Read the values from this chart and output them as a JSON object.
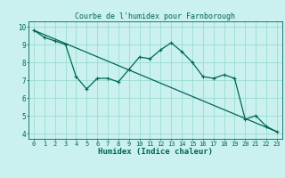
{
  "title": "Courbe de l'humidex pour Farnborough",
  "xlabel": "Humidex (Indice chaleur)",
  "bg_color": "#caf0f0",
  "grid_color": "#99ddcc",
  "line_color": "#006655",
  "xlim_min": -0.5,
  "xlim_max": 23.5,
  "ylim_min": 3.7,
  "ylim_max": 10.3,
  "yticks": [
    4,
    5,
    6,
    7,
    8,
    9,
    10
  ],
  "xticks": [
    0,
    1,
    2,
    3,
    4,
    5,
    6,
    7,
    8,
    9,
    10,
    11,
    12,
    13,
    14,
    15,
    16,
    17,
    18,
    19,
    20,
    21,
    22,
    23
  ],
  "series1_x": [
    0,
    1,
    2,
    3,
    4,
    5,
    6,
    7,
    8,
    9,
    10,
    11,
    12,
    13,
    14,
    15,
    16,
    17,
    18,
    19,
    20,
    21,
    22,
    23
  ],
  "series1_y": [
    9.8,
    9.4,
    9.2,
    9.0,
    7.2,
    6.5,
    7.1,
    7.1,
    6.9,
    7.6,
    8.3,
    8.2,
    8.7,
    9.1,
    8.6,
    8.0,
    7.2,
    7.1,
    7.3,
    7.1,
    4.8,
    5.0,
    4.4,
    4.1
  ],
  "series2_x": [
    0,
    23
  ],
  "series2_y": [
    9.8,
    4.1
  ],
  "marker_size": 3,
  "linewidth": 0.9,
  "title_fontsize": 6,
  "xlabel_fontsize": 6.5,
  "tick_fontsize": 5
}
